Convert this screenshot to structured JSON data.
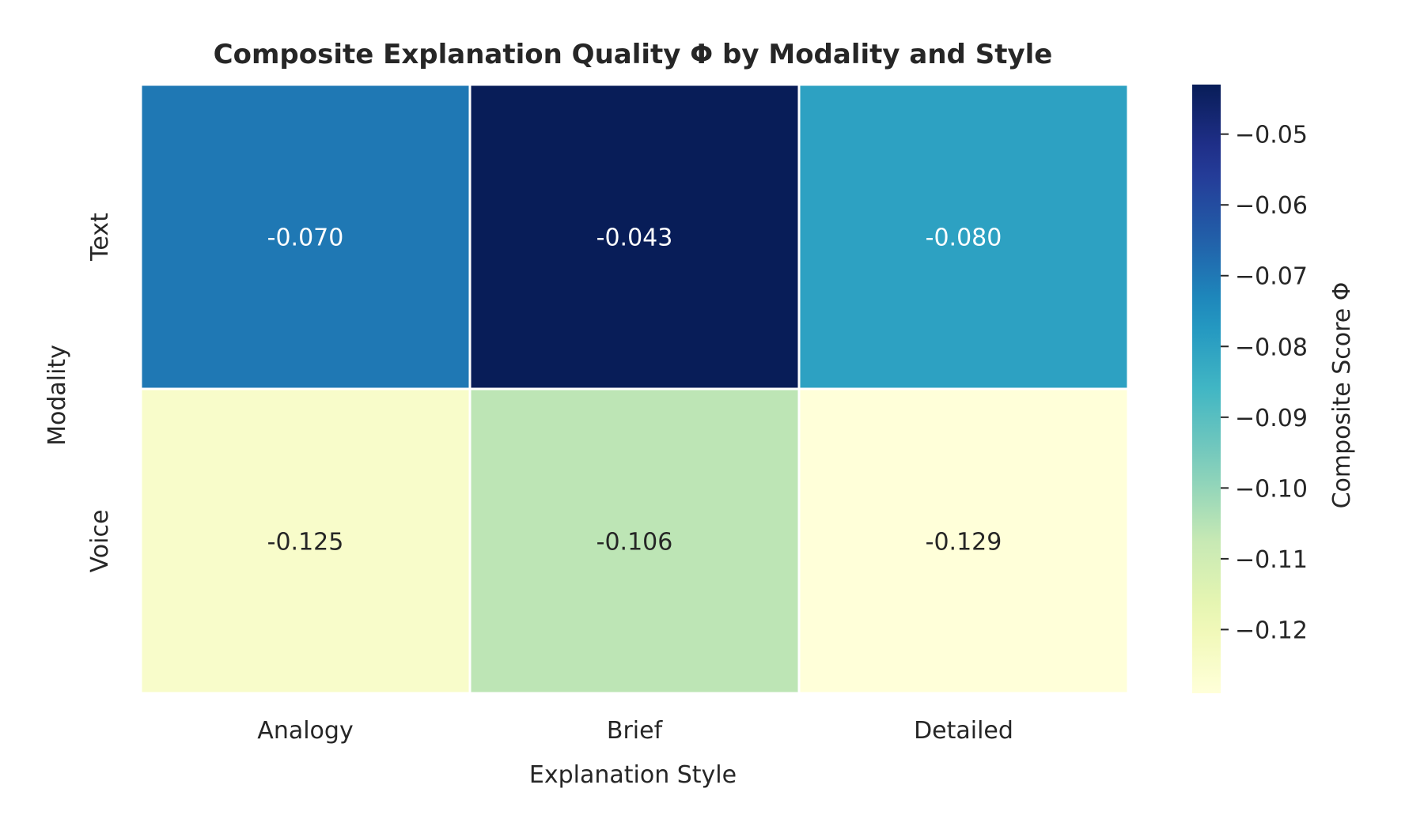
{
  "chart_data": {
    "type": "heatmap",
    "title": "Composite Explanation Quality Φ by Modality and Style",
    "xlabel": "Explanation Style",
    "ylabel": "Modality",
    "x_categories": [
      "Analogy",
      "Brief",
      "Detailed"
    ],
    "y_categories": [
      "Text",
      "Voice"
    ],
    "values": [
      [
        -0.07,
        -0.043,
        -0.08
      ],
      [
        -0.125,
        -0.106,
        -0.129
      ]
    ],
    "cell_labels": [
      [
        "-0.070",
        "-0.043",
        "-0.080"
      ],
      [
        "-0.125",
        "-0.106",
        "-0.129"
      ]
    ],
    "colormap": "YlGnBu",
    "colorbar": {
      "label": "Composite Score Φ",
      "vmin": -0.129,
      "vmax": -0.043,
      "ticks": [
        -0.05,
        -0.06,
        -0.07,
        -0.08,
        -0.09,
        -0.1,
        -0.11,
        -0.12
      ],
      "tick_labels": [
        "−0.05",
        "−0.06",
        "−0.07",
        "−0.08",
        "−0.09",
        "−0.10",
        "−0.11",
        "−0.12"
      ]
    },
    "grid": false
  }
}
